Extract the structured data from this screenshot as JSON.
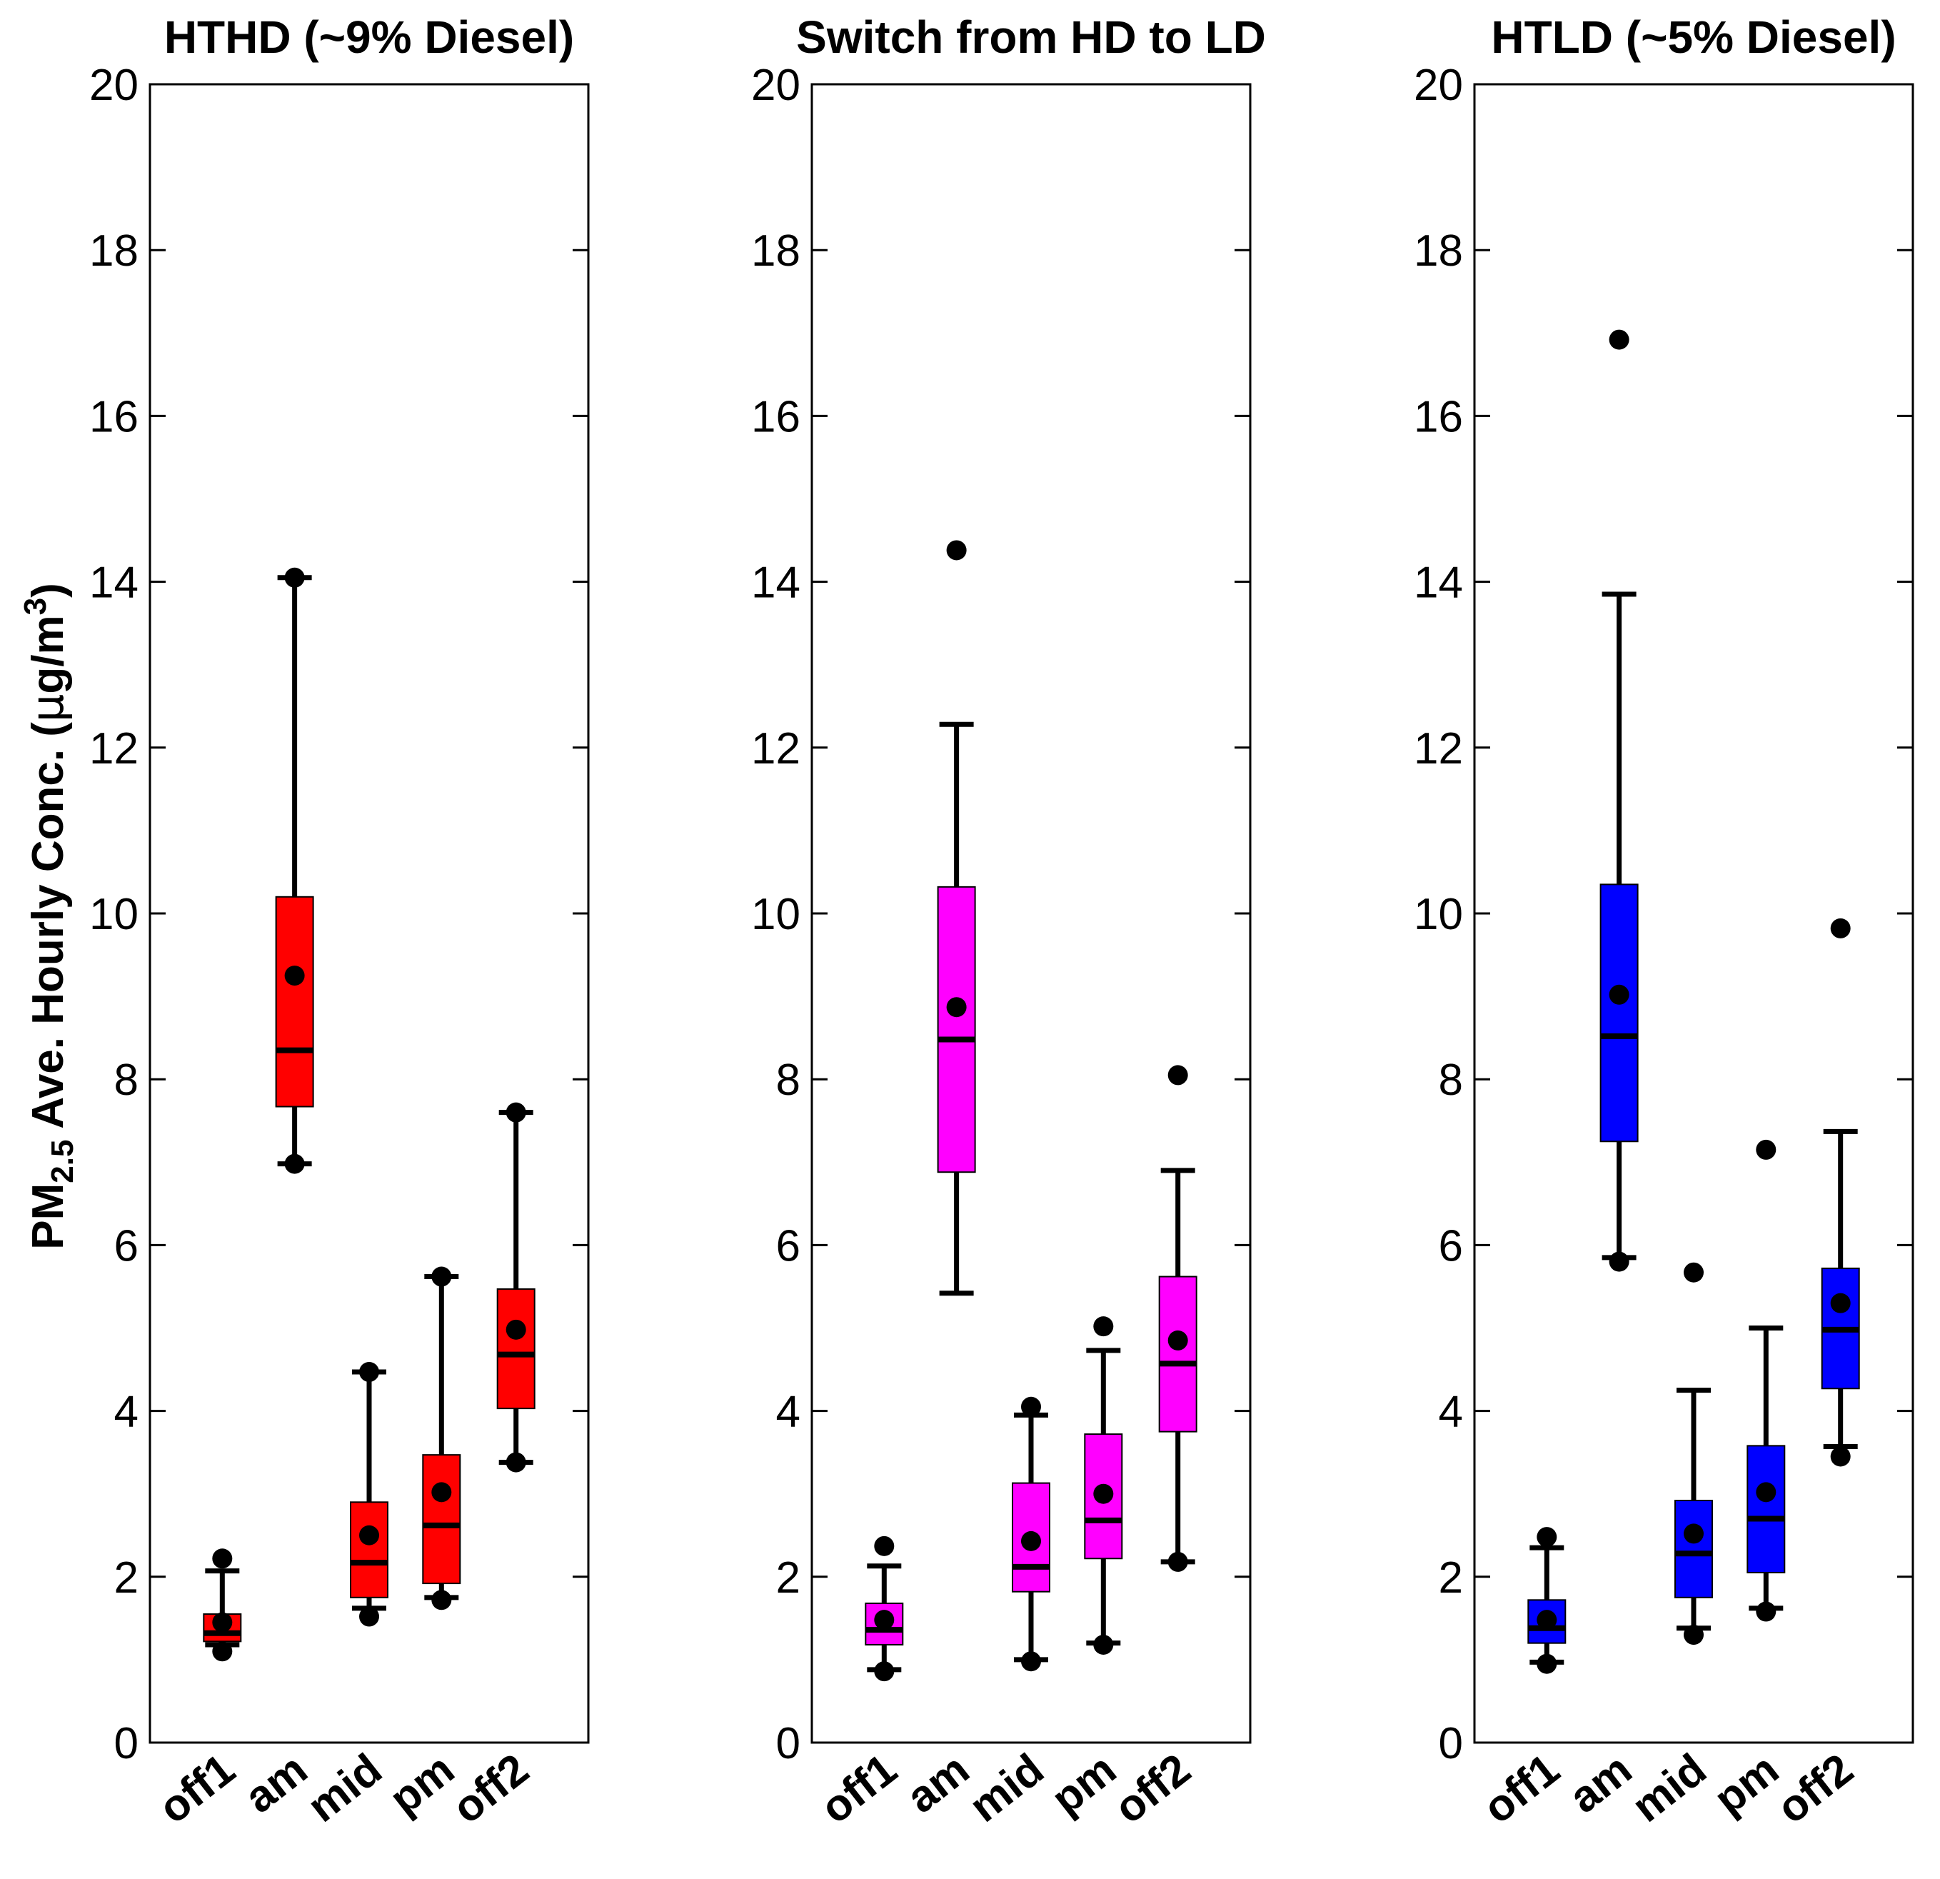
{
  "figure": {
    "ylabel": {
      "main": "PM",
      "subscript": "2.5",
      "rest": " Ave. Hourly Conc. (",
      "mu": "μ",
      "unit": "g/m",
      "superscript": "3",
      "close": ")"
    }
  },
  "chart_data": [
    {
      "type": "box",
      "title": "HTHD (~9% Diesel)",
      "color": "#ff0000",
      "ylim": [
        0,
        20
      ],
      "yticks": [
        0,
        2,
        4,
        6,
        8,
        10,
        12,
        14,
        16,
        18,
        20
      ],
      "categories": [
        "off1",
        "am",
        "mid",
        "pm",
        "off2"
      ],
      "boxes": [
        {
          "q1": 1.22,
          "median": 1.32,
          "q3": 1.55,
          "whisker_low": 1.18,
          "whisker_high": 2.07,
          "mean": 1.45,
          "outliers": [
            1.1,
            2.22
          ]
        },
        {
          "q1": 7.67,
          "median": 8.35,
          "q3": 10.2,
          "whisker_low": 6.98,
          "whisker_high": 14.05,
          "mean": 9.25,
          "outliers": [
            6.98,
            14.05
          ]
        },
        {
          "q1": 1.75,
          "median": 2.17,
          "q3": 2.9,
          "whisker_low": 1.62,
          "whisker_high": 4.47,
          "mean": 2.5,
          "outliers": [
            1.52,
            4.47
          ]
        },
        {
          "q1": 1.92,
          "median": 2.62,
          "q3": 3.47,
          "whisker_low": 1.75,
          "whisker_high": 5.62,
          "mean": 3.02,
          "outliers": [
            1.72,
            5.62
          ]
        },
        {
          "q1": 4.03,
          "median": 4.68,
          "q3": 5.47,
          "whisker_low": 3.38,
          "whisker_high": 7.6,
          "mean": 4.98,
          "outliers": [
            3.38,
            7.6
          ]
        }
      ]
    },
    {
      "type": "box",
      "title": "Switch from HD to LD",
      "color": "#ff00ff",
      "ylim": [
        0,
        20
      ],
      "yticks": [
        0,
        2,
        4,
        6,
        8,
        10,
        12,
        14,
        16,
        18,
        20
      ],
      "categories": [
        "off1",
        "am",
        "mid",
        "pm",
        "off2"
      ],
      "boxes": [
        {
          "q1": 1.18,
          "median": 1.36,
          "q3": 1.68,
          "whisker_low": 0.88,
          "whisker_high": 2.13,
          "mean": 1.48,
          "outliers": [
            0.86,
            2.37
          ]
        },
        {
          "q1": 6.88,
          "median": 8.48,
          "q3": 10.32,
          "whisker_low": 5.42,
          "whisker_high": 12.28,
          "mean": 8.87,
          "outliers": [
            14.38
          ]
        },
        {
          "q1": 1.82,
          "median": 2.12,
          "q3": 3.13,
          "whisker_low": 1.0,
          "whisker_high": 3.95,
          "mean": 2.43,
          "outliers": [
            0.98,
            4.05
          ]
        },
        {
          "q1": 2.22,
          "median": 2.68,
          "q3": 3.72,
          "whisker_low": 1.2,
          "whisker_high": 4.73,
          "mean": 3.0,
          "outliers": [
            1.18,
            5.02
          ]
        },
        {
          "q1": 3.75,
          "median": 4.57,
          "q3": 5.62,
          "whisker_low": 2.18,
          "whisker_high": 6.9,
          "mean": 4.85,
          "outliers": [
            2.18,
            8.05
          ]
        }
      ]
    },
    {
      "type": "box",
      "title": "HTLD (~5% Diesel)",
      "color": "#0000ff",
      "ylim": [
        0,
        20
      ],
      "yticks": [
        0,
        2,
        4,
        6,
        8,
        10,
        12,
        14,
        16,
        18,
        20
      ],
      "categories": [
        "off1",
        "am",
        "mid",
        "pm",
        "off2"
      ],
      "boxes": [
        {
          "q1": 1.2,
          "median": 1.38,
          "q3": 1.72,
          "whisker_low": 0.97,
          "whisker_high": 2.35,
          "mean": 1.48,
          "outliers": [
            0.95,
            2.48
          ]
        },
        {
          "q1": 7.25,
          "median": 8.52,
          "q3": 10.35,
          "whisker_low": 5.85,
          "whisker_high": 13.85,
          "mean": 9.02,
          "outliers": [
            5.8,
            16.92
          ]
        },
        {
          "q1": 1.75,
          "median": 2.28,
          "q3": 2.92,
          "whisker_low": 1.38,
          "whisker_high": 4.25,
          "mean": 2.52,
          "outliers": [
            1.3,
            5.67
          ]
        },
        {
          "q1": 2.05,
          "median": 2.7,
          "q3": 3.58,
          "whisker_low": 1.62,
          "whisker_high": 5.0,
          "mean": 3.02,
          "outliers": [
            1.58,
            7.15
          ]
        },
        {
          "q1": 4.27,
          "median": 4.98,
          "q3": 5.72,
          "whisker_low": 3.57,
          "whisker_high": 7.37,
          "mean": 5.3,
          "outliers": [
            3.45,
            9.82
          ]
        }
      ]
    }
  ]
}
